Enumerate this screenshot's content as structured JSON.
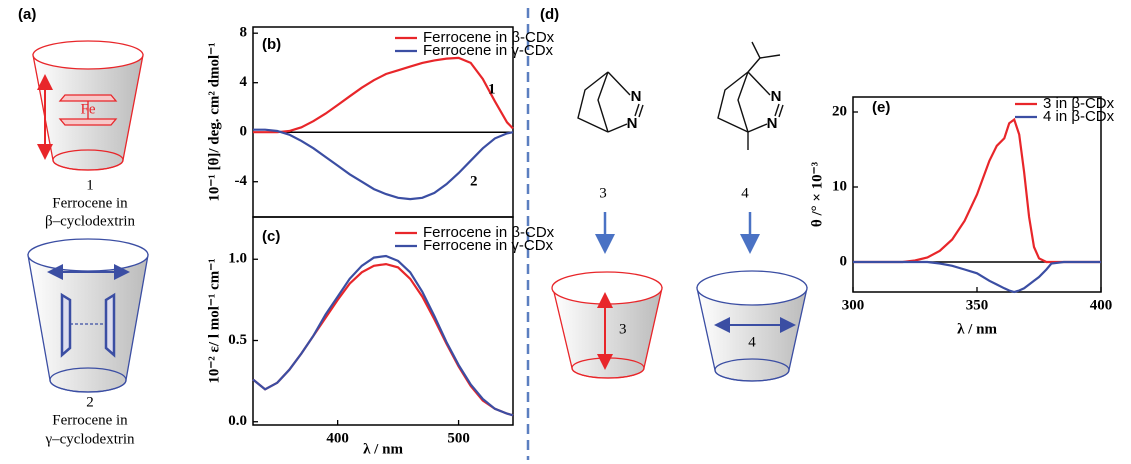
{
  "panel_a": {
    "label": "(a)",
    "fe": "Fe",
    "items": [
      {
        "number": "1",
        "caption": [
          "Ferrocene in",
          "β–cyclodextrin"
        ]
      },
      {
        "number": "2",
        "caption": [
          "Ferrocene in",
          "γ–cyclodextrin"
        ]
      }
    ]
  },
  "panel_d": {
    "label": "(d)",
    "molecules": [
      {
        "number": "3",
        "atoms": [
          "N",
          "N"
        ],
        "cup_number": "3"
      },
      {
        "number": "4",
        "atoms": [
          "N",
          "N"
        ],
        "cup_number": "4"
      }
    ]
  },
  "chart_data": [
    {
      "type": "line",
      "label": "(b)",
      "y_label": "10⁻¹ [θ]/ deg. cm² dmol⁻¹",
      "xlim": [
        330,
        545
      ],
      "ylim": [
        -6.85,
        8.5
      ],
      "yticks": [
        -4,
        0,
        4,
        8
      ],
      "zero_line": true,
      "legend": "upper right",
      "annotations": [
        "1",
        "2"
      ],
      "x": [
        330,
        340,
        350,
        360,
        370,
        380,
        390,
        400,
        410,
        420,
        430,
        440,
        450,
        460,
        470,
        480,
        490,
        500,
        510,
        520,
        530,
        540,
        545
      ],
      "series": [
        {
          "name": "Ferrocene in β-CDx",
          "color": "#e8262a",
          "values": [
            0,
            0,
            0,
            0.1,
            0.4,
            0.9,
            1.5,
            2.2,
            2.9,
            3.6,
            4.2,
            4.7,
            5.0,
            5.3,
            5.6,
            5.8,
            5.95,
            6.0,
            5.6,
            4.3,
            2.5,
            0.8,
            0.3
          ]
        },
        {
          "name": "Ferrocene in γ-CDx",
          "color": "#3b4ea3",
          "values": [
            0.2,
            0.2,
            0.1,
            -0.2,
            -0.7,
            -1.3,
            -2.0,
            -2.7,
            -3.4,
            -4.0,
            -4.6,
            -5.0,
            -5.3,
            -5.4,
            -5.3,
            -4.9,
            -4.2,
            -3.3,
            -2.3,
            -1.3,
            -0.5,
            -0.1,
            0
          ]
        }
      ]
    },
    {
      "type": "line",
      "label": "(c)",
      "y_label": "10⁻² ε/ l mol⁻¹ cm⁻¹",
      "x_label": "λ / nm",
      "xlim": [
        330,
        545
      ],
      "ylim": [
        -0.02,
        1.26
      ],
      "xticks": [
        400,
        500
      ],
      "yticks": [
        {
          "value": 0,
          "label": "0.0"
        },
        0.5,
        {
          "value": 1,
          "label": "1.0"
        }
      ],
      "legend": "upper right",
      "x": [
        330,
        340,
        350,
        360,
        370,
        380,
        390,
        400,
        410,
        420,
        430,
        440,
        450,
        460,
        470,
        480,
        490,
        500,
        510,
        520,
        530,
        540,
        545
      ],
      "series": [
        {
          "name": "Ferrocene in β-CDx",
          "color": "#e8262a",
          "values": [
            0.26,
            0.2,
            0.24,
            0.32,
            0.42,
            0.53,
            0.64,
            0.75,
            0.85,
            0.92,
            0.96,
            0.97,
            0.95,
            0.88,
            0.77,
            0.63,
            0.48,
            0.34,
            0.22,
            0.13,
            0.08,
            0.05,
            0.04
          ]
        },
        {
          "name": "Ferrocene in γ-CDx",
          "color": "#3b4ea3",
          "values": [
            0.26,
            0.2,
            0.24,
            0.32,
            0.42,
            0.53,
            0.66,
            0.77,
            0.88,
            0.96,
            1.01,
            1.02,
            0.99,
            0.92,
            0.8,
            0.65,
            0.49,
            0.35,
            0.23,
            0.14,
            0.08,
            0.05,
            0.04
          ]
        }
      ]
    },
    {
      "type": "line",
      "label": "(e)",
      "y_label": "θ /° × 10⁻³",
      "x_label": "λ / nm",
      "xlim": [
        300,
        400
      ],
      "ylim": [
        -4,
        22
      ],
      "xticks": [
        300,
        350,
        400
      ],
      "yticks": [
        0,
        10,
        20
      ],
      "zero_line": true,
      "legend": "upper right",
      "x": [
        300,
        320,
        325,
        330,
        335,
        340,
        345,
        350,
        355,
        358,
        361,
        363,
        365,
        367,
        369,
        371,
        373,
        375,
        378,
        380,
        385,
        390,
        400
      ],
      "series": [
        {
          "name": "3 in β-CDx",
          "color": "#e8262a",
          "values": [
            0,
            0,
            0.2,
            0.6,
            1.5,
            3,
            5.5,
            9,
            13.5,
            15.5,
            16.5,
            18.5,
            19,
            17,
            12,
            6,
            2,
            0.5,
            0,
            0,
            0,
            0,
            0
          ]
        },
        {
          "name": "4 in β-CDx",
          "color": "#3b4ea3",
          "values": [
            0,
            0,
            0,
            0,
            -0.2,
            -0.5,
            -1,
            -1.5,
            -2.5,
            -3,
            -3.5,
            -3.8,
            -4,
            -3.8,
            -3.5,
            -3,
            -2.5,
            -2,
            -1,
            -0.2,
            0,
            0,
            0
          ]
        }
      ]
    }
  ]
}
